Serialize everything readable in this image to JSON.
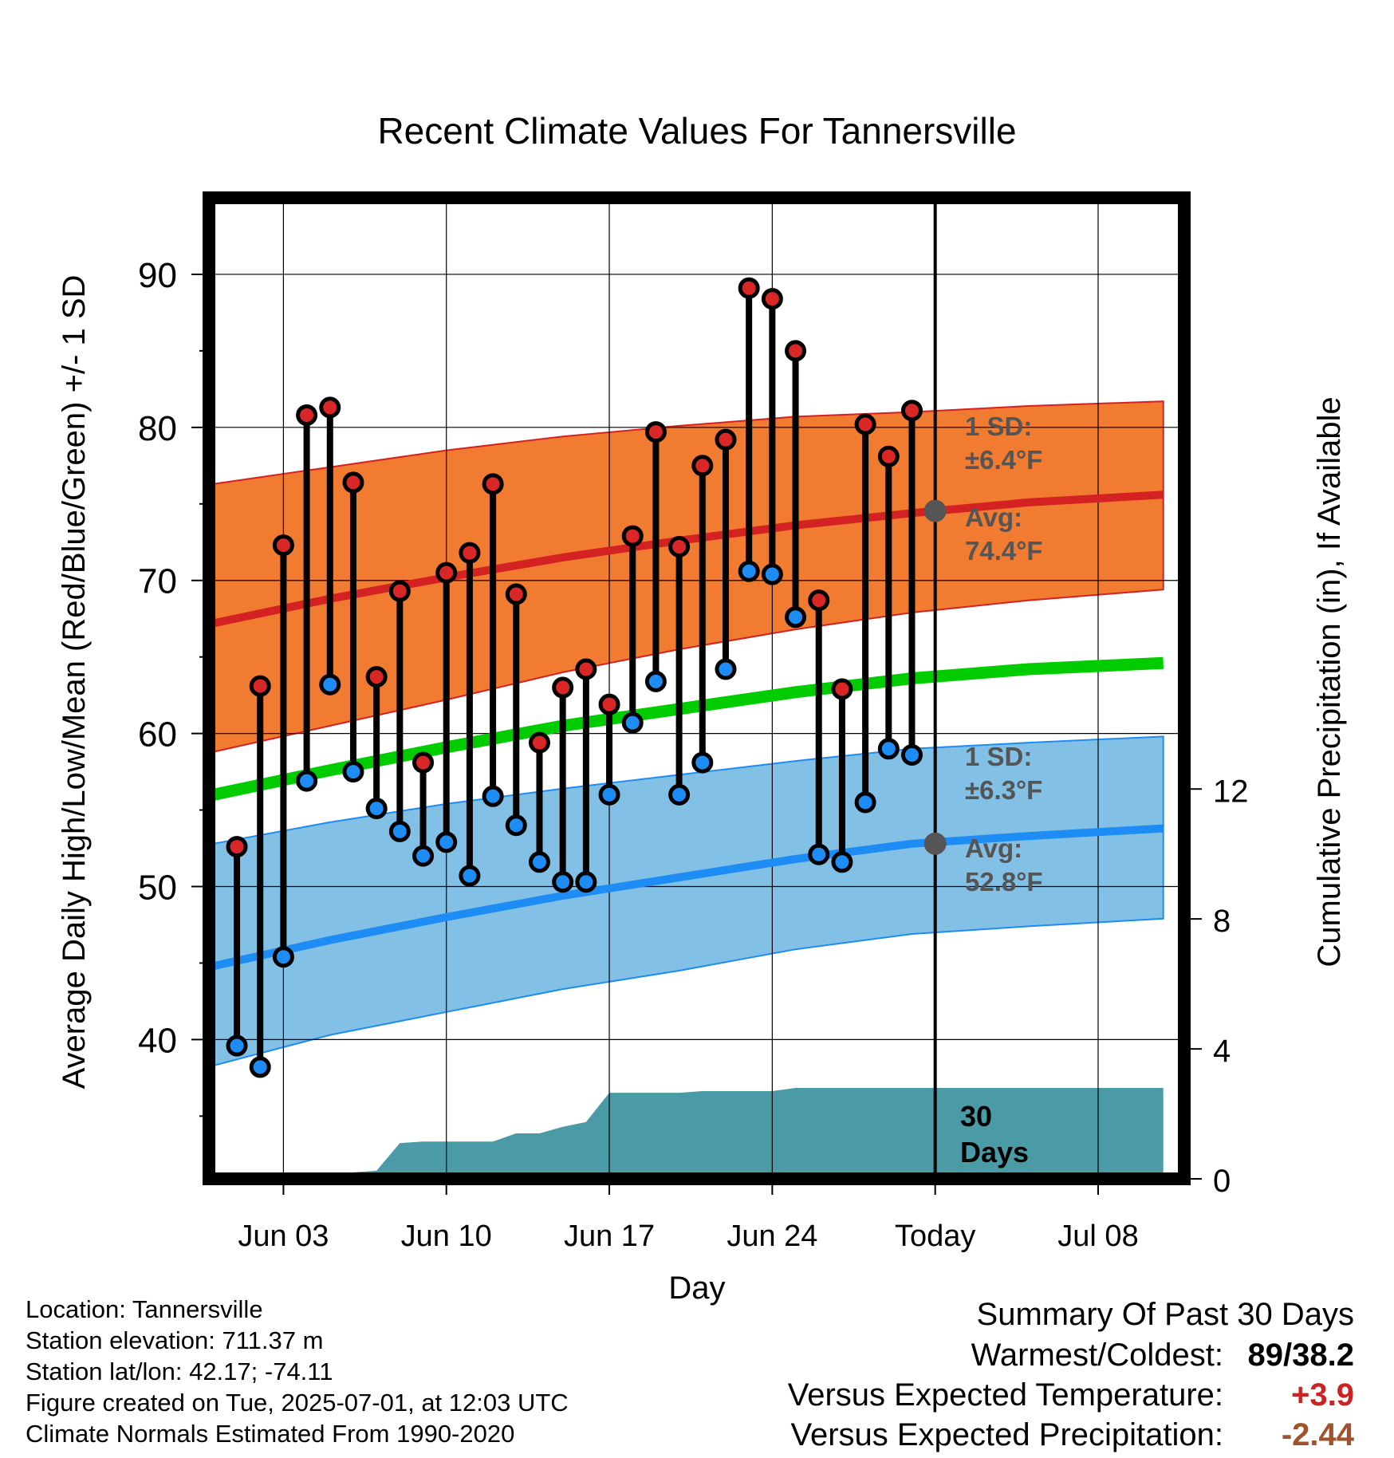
{
  "chart_data": {
    "type": "line",
    "title": "Recent Climate Values For Tannersville",
    "xlabel": "Day",
    "ylabel_left": "Average Daily High/Low/Mean (Red/Blue/Green) +/- 1 SD",
    "ylabel_right": "Cumulative Precipitation (in), If Available",
    "ylim_left": [
      30.9,
      95
    ],
    "ylim_right": [
      0,
      30.2
    ],
    "x_tick_labels": [
      "Jun 03",
      "Jun 10",
      "Jun 17",
      "Jun 24",
      "Today",
      "Jul 08"
    ],
    "x_tick_days": [
      3,
      10,
      17,
      24,
      31,
      38
    ],
    "y_left_ticks": [
      40,
      50,
      60,
      70,
      80,
      90
    ],
    "y_left_minor_ticks": [
      35,
      45,
      55,
      65,
      75,
      85
    ],
    "y_right_ticks": [
      0,
      4,
      8,
      12
    ],
    "x_range_days": [
      -0.2,
      41.7
    ],
    "today_day": 31,
    "grid": true,
    "colors": {
      "high_band": "#f07b31",
      "high_mean": "#d42121",
      "low_band": "#82c0e6",
      "low_mean": "#1e8cf5",
      "overall_mean": "#00cc00",
      "precip": "#4a9ba6",
      "high_dot": "#d92626",
      "low_dot": "#1e8cf5",
      "today_dot": "#555555",
      "annotation": "#555555",
      "positive": "#cc2222",
      "negative": "#a0522d"
    },
    "normals": {
      "x": [
        0,
        5,
        10,
        15,
        20,
        25,
        30,
        35,
        40.8
      ],
      "high_mean": [
        67.2,
        68.8,
        70.2,
        71.5,
        72.6,
        73.6,
        74.4,
        75.1,
        75.6
      ],
      "high_upper": [
        76.3,
        77.4,
        78.5,
        79.4,
        80.1,
        80.7,
        81.0,
        81.4,
        81.7
      ],
      "high_lower": [
        58.8,
        60.5,
        62.2,
        64.0,
        65.5,
        66.8,
        67.9,
        68.7,
        69.4
      ],
      "low_mean": [
        44.8,
        46.5,
        48.0,
        49.4,
        50.6,
        51.8,
        52.8,
        53.3,
        53.8
      ],
      "low_upper": [
        52.8,
        54.2,
        55.4,
        56.4,
        57.3,
        58.2,
        59.0,
        59.4,
        59.8
      ],
      "low_lower": [
        38.3,
        40.3,
        41.8,
        43.3,
        44.5,
        45.9,
        46.9,
        47.4,
        47.9
      ],
      "overall_mean": [
        56.0,
        57.6,
        59.1,
        60.5,
        61.6,
        62.7,
        63.6,
        64.2,
        64.6
      ]
    },
    "series": [
      {
        "name": "High",
        "x": [
          1,
          2,
          3,
          4,
          5,
          6,
          7,
          8,
          9,
          10,
          11,
          12,
          13,
          14,
          15,
          16,
          17,
          18,
          19,
          20,
          21,
          22,
          23,
          24,
          25,
          26,
          27,
          28,
          29,
          30
        ],
        "values": [
          52.6,
          63.1,
          72.3,
          80.8,
          81.3,
          76.4,
          63.7,
          69.3,
          58.1,
          70.5,
          71.8,
          76.3,
          69.1,
          59.4,
          63.0,
          64.2,
          61.9,
          72.9,
          79.7,
          72.2,
          77.5,
          79.2,
          89.1,
          88.4,
          85.0,
          68.7,
          62.9,
          80.2,
          78.1,
          81.1
        ]
      },
      {
        "name": "Low",
        "x": [
          1,
          2,
          3,
          4,
          5,
          6,
          7,
          8,
          9,
          10,
          11,
          12,
          13,
          14,
          15,
          16,
          17,
          18,
          19,
          20,
          21,
          22,
          23,
          24,
          25,
          26,
          27,
          28,
          29,
          30
        ],
        "values": [
          39.6,
          38.2,
          45.4,
          56.9,
          63.2,
          57.5,
          55.1,
          53.6,
          52.0,
          52.9,
          50.7,
          55.9,
          54.0,
          51.6,
          50.3,
          50.3,
          56.0,
          60.7,
          63.4,
          56.0,
          58.1,
          64.2,
          70.6,
          70.4,
          67.6,
          52.1,
          51.6,
          55.5,
          59.0,
          58.6
        ]
      },
      {
        "name": "Cumulative Precipitation",
        "x": [
          0,
          5,
          6,
          7,
          8,
          9,
          10,
          11,
          12,
          13,
          14,
          15,
          16,
          17,
          18,
          19,
          20,
          21,
          22,
          23,
          24,
          25,
          26,
          27,
          28,
          29,
          30,
          31,
          40.8
        ],
        "values": [
          0,
          0,
          0.2,
          0.25,
          1.1,
          1.15,
          1.15,
          1.15,
          1.15,
          1.4,
          1.4,
          1.6,
          1.75,
          2.65,
          2.65,
          2.65,
          2.65,
          2.7,
          2.7,
          2.7,
          2.7,
          2.8,
          2.8,
          2.8,
          2.8,
          2.8,
          2.8,
          2.8,
          2.8
        ]
      }
    ],
    "annotations": {
      "high_sd": "1 SD:",
      "high_sd_value": "±6.4°F",
      "high_avg": "Avg:",
      "high_avg_value": "74.4°F",
      "low_sd": "1 SD:",
      "low_sd_value": "±6.3°F",
      "low_avg": "Avg:",
      "low_avg_value": "52.8°F",
      "days_number": "30",
      "days_word": "Days"
    }
  },
  "metadata": {
    "location": "Location: Tannersville",
    "elevation": "Station elevation: 711.37 m",
    "latlon": "Station lat/lon: 42.17; -74.11",
    "created": "Figure created on Tue, 2025-07-01, at 12:03 UTC",
    "normals": "Climate Normals Estimated From 1990-2020"
  },
  "summary": {
    "title": "Summary Of Past 30 Days",
    "warmest_label": "Warmest/Coldest:",
    "warmest_value": "89/38.2",
    "temp_label": "Versus Expected Temperature:",
    "temp_value": "+3.9",
    "precip_label": "Versus Expected Precipitation:",
    "precip_value": "-2.44"
  }
}
